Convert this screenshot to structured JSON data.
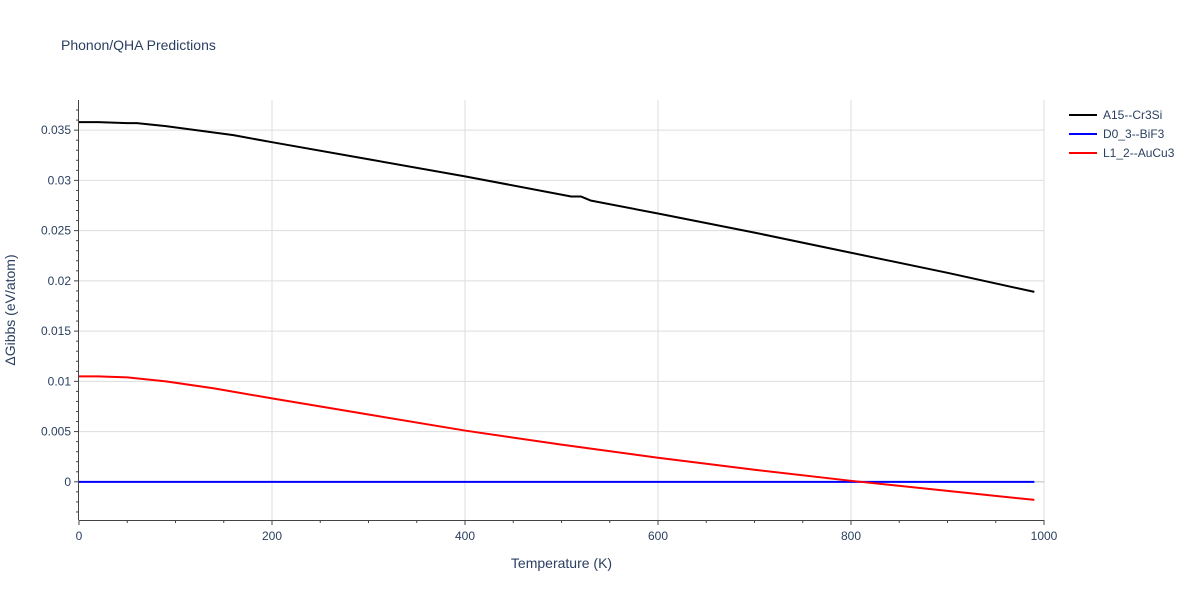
{
  "chart_data": {
    "type": "line",
    "title": "Phonon/QHA Predictions",
    "xlabel": "Temperature (K)",
    "ylabel": "ΔGibbs (eV/atom)",
    "xlim": [
      0,
      1000
    ],
    "ylim": [
      -0.0038,
      0.038
    ],
    "x_ticks": [
      0,
      200,
      400,
      600,
      800,
      1000
    ],
    "x_tick_labels": [
      "0",
      "200",
      "400",
      "600",
      "800",
      "1000"
    ],
    "y_ticks": [
      0,
      0.005,
      0.01,
      0.015,
      0.02,
      0.025,
      0.03,
      0.035
    ],
    "y_tick_labels": [
      "0",
      "0.005",
      "0.01",
      "0.015",
      "0.02",
      "0.025",
      "0.03",
      "0.035"
    ],
    "grid": true,
    "legend_position": "top-right",
    "series": [
      {
        "name": "A15--Cr3Si",
        "color": "#000000",
        "x": [
          0,
          20,
          50,
          60,
          90,
          160,
          200,
          300,
          400,
          510,
          520,
          530,
          600,
          700,
          800,
          900,
          990
        ],
        "y": [
          0.0358,
          0.0358,
          0.0357,
          0.0357,
          0.0354,
          0.0345,
          0.0338,
          0.0321,
          0.0304,
          0.0284,
          0.0284,
          0.028,
          0.0267,
          0.0248,
          0.0228,
          0.0208,
          0.0189
        ]
      },
      {
        "name": "D0_3--BiF3",
        "color": "#0000ff",
        "x": [
          0,
          990
        ],
        "y": [
          0,
          0
        ]
      },
      {
        "name": "L1_2--AuCu3",
        "color": "#ff0000",
        "x": [
          0,
          20,
          50,
          90,
          140,
          200,
          300,
          400,
          500,
          600,
          700,
          800,
          900,
          990
        ],
        "y": [
          0.0105,
          0.0105,
          0.0104,
          0.01,
          0.0093,
          0.0083,
          0.0067,
          0.0051,
          0.0037,
          0.0024,
          0.0012,
          0.0001,
          -0.0009,
          -0.0018
        ]
      }
    ]
  }
}
